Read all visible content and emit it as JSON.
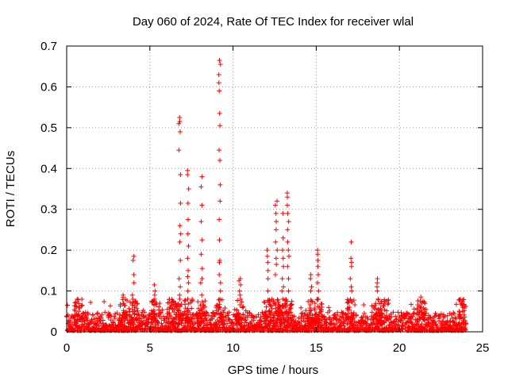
{
  "chart_data": {
    "type": "scatter",
    "title": "Day 060 of 2024, Rate Of TEC Index for receiver wlal",
    "xlabel": "GPS time / hours",
    "ylabel": "ROTI / TECUs",
    "xlim": [
      0,
      25
    ],
    "ylim": [
      0,
      0.7
    ],
    "xticks": [
      0,
      5,
      10,
      15,
      20,
      25
    ],
    "yticks": [
      0,
      0.1,
      0.2,
      0.3,
      0.4,
      0.5,
      0.6,
      0.7
    ],
    "grid": true,
    "marker": "+",
    "series": [
      {
        "name": "ROTI",
        "color": "#ff0000",
        "baseline_range": [
          0.0,
          24.0
        ],
        "spikes": [
          {
            "x": 0.7,
            "values": [
              0.06,
              0.05,
              0.04
            ]
          },
          {
            "x": 3.4,
            "values": [
              0.09,
              0.085,
              0.07
            ]
          },
          {
            "x": 4.0,
            "values": [
              0.185,
              0.175,
              0.14,
              0.12,
              0.09,
              0.08,
              0.07
            ]
          },
          {
            "x": 5.3,
            "values": [
              0.115,
              0.1,
              0.09,
              0.08,
              0.07
            ]
          },
          {
            "x": 6.3,
            "values": [
              0.07,
              0.065,
              0.06
            ]
          },
          {
            "x": 6.8,
            "values": [
              0.525,
              0.515,
              0.51,
              0.49,
              0.445,
              0.385,
              0.315,
              0.26,
              0.24,
              0.22,
              0.175,
              0.13,
              0.11,
              0.09,
              0.08
            ]
          },
          {
            "x": 7.3,
            "values": [
              0.395,
              0.385,
              0.35,
              0.315,
              0.275,
              0.24,
              0.21,
              0.18,
              0.15,
              0.135,
              0.12,
              0.1,
              0.08
            ]
          },
          {
            "x": 8.1,
            "values": [
              0.38,
              0.355,
              0.31,
              0.27,
              0.225,
              0.19,
              0.155,
              0.13,
              0.12,
              0.09
            ]
          },
          {
            "x": 9.2,
            "values": [
              0.665,
              0.655,
              0.63,
              0.61,
              0.59,
              0.535,
              0.505,
              0.445,
              0.42,
              0.36,
              0.32,
              0.275,
              0.225,
              0.175,
              0.17,
              0.14,
              0.12,
              0.1,
              0.08
            ]
          },
          {
            "x": 10.4,
            "values": [
              0.13,
              0.125,
              0.115,
              0.1,
              0.09,
              0.08
            ]
          },
          {
            "x": 12.1,
            "values": [
              0.2,
              0.185,
              0.17,
              0.15,
              0.13,
              0.1
            ]
          },
          {
            "x": 12.6,
            "values": [
              0.32,
              0.31,
              0.29,
              0.27,
              0.25,
              0.22,
              0.2,
              0.18,
              0.165,
              0.14
            ]
          },
          {
            "x": 13.0,
            "values": [
              0.29,
              0.23,
              0.2,
              0.18,
              0.16,
              0.13,
              0.11,
              0.1,
              0.08
            ]
          },
          {
            "x": 13.3,
            "values": [
              0.34,
              0.33,
              0.31,
              0.29,
              0.27,
              0.25,
              0.22,
              0.2,
              0.185,
              0.16,
              0.13,
              0.1
            ]
          },
          {
            "x": 14.7,
            "values": [
              0.14,
              0.13,
              0.11,
              0.1
            ]
          },
          {
            "x": 15.1,
            "values": [
              0.2,
              0.19,
              0.175,
              0.16,
              0.14,
              0.12,
              0.1,
              0.08
            ]
          },
          {
            "x": 17.1,
            "values": [
              0.22,
              0.18,
              0.17,
              0.16,
              0.13,
              0.11,
              0.1
            ]
          },
          {
            "x": 18.7,
            "values": [
              0.13,
              0.12,
              0.11,
              0.1,
              0.08
            ]
          },
          {
            "x": 19.1,
            "values": [
              0.075,
              0.07
            ]
          },
          {
            "x": 21.3,
            "values": [
              0.085,
              0.075,
              0.06
            ]
          },
          {
            "x": 23.8,
            "values": [
              0.07,
              0.065,
              0.06,
              0.05
            ]
          }
        ]
      }
    ]
  }
}
